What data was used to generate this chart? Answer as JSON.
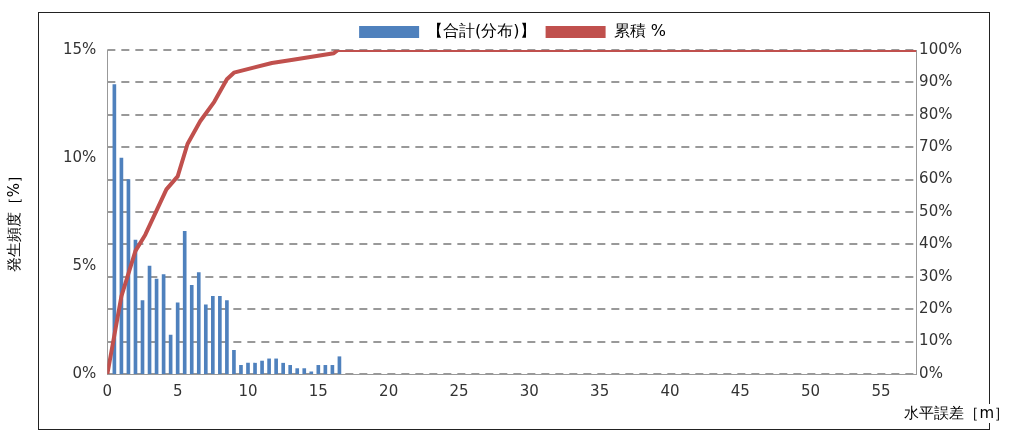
{
  "chart_data": {
    "type": "bar",
    "xlabel": "水平誤差［m］",
    "ylabel": "発生頻度［%］",
    "xlim": [
      0,
      57.5
    ],
    "xticks": [
      0,
      5,
      10,
      15,
      20,
      25,
      30,
      35,
      40,
      45,
      50,
      55
    ],
    "ylim": [
      0,
      15
    ],
    "yticks": [
      {
        "value": 0,
        "label": "0%"
      },
      {
        "value": 5,
        "label": "5%"
      },
      {
        "value": 10,
        "label": "10%"
      },
      {
        "value": 15,
        "label": "15%"
      }
    ],
    "y2lim": [
      0,
      100
    ],
    "y2ticks": [
      {
        "value": 0,
        "label": "0%"
      },
      {
        "value": 10,
        "label": "10%"
      },
      {
        "value": 20,
        "label": "20%"
      },
      {
        "value": 30,
        "label": "30%"
      },
      {
        "value": 40,
        "label": "40%"
      },
      {
        "value": 50,
        "label": "50%"
      },
      {
        "value": 60,
        "label": "60%"
      },
      {
        "value": 70,
        "label": "70%"
      },
      {
        "value": 80,
        "label": "80%"
      },
      {
        "value": 90,
        "label": "90%"
      },
      {
        "value": 100,
        "label": "100%"
      }
    ],
    "grid": "y",
    "legend": "top",
    "series": [
      {
        "name": "【合計(分布)】",
        "color": "#4f81bd",
        "x": [
          0.5,
          1,
          1.5,
          2,
          2.5,
          3,
          3.5,
          4,
          4.5,
          5,
          5.5,
          6,
          6.5,
          7,
          7.5,
          8,
          8.5,
          9,
          9.5,
          10,
          10.5,
          11,
          11.5,
          12,
          12.5,
          13,
          13.5,
          14,
          14.5,
          15,
          15.5,
          16,
          16.5
        ],
        "values": [
          13.4,
          10.0,
          9.0,
          6.2,
          3.4,
          5.0,
          4.4,
          4.6,
          1.8,
          3.3,
          6.6,
          4.1,
          4.7,
          3.2,
          3.6,
          3.6,
          3.4,
          1.1,
          0.4,
          0.5,
          0.5,
          0.6,
          0.7,
          0.7,
          0.5,
          0.4,
          0.25,
          0.25,
          0.1,
          0.4,
          0.4,
          0.4,
          0.8
        ]
      },
      {
        "name": "累積 %",
        "type": "line",
        "axis": "y2",
        "color": "#c0504d",
        "x": [
          0,
          1,
          2,
          2.7,
          4.2,
          5,
          5.7,
          6.6,
          7.6,
          8.5,
          9,
          11.7,
          13.2,
          16.1,
          16.4,
          57.5
        ],
        "values": [
          0,
          24,
          38,
          43,
          57,
          61,
          71,
          78,
          84,
          91,
          93,
          96,
          97,
          99,
          100,
          100
        ]
      }
    ]
  }
}
